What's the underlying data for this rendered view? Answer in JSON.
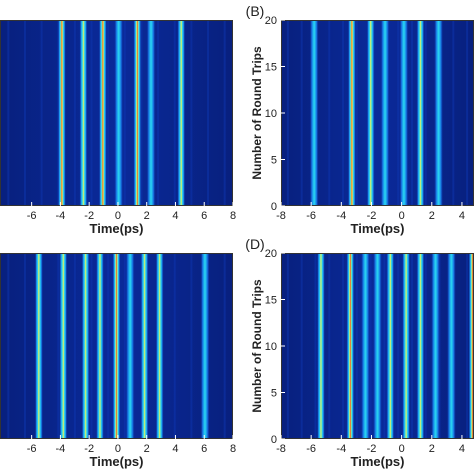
{
  "chart_data": [
    {
      "id": "A",
      "type": "heatmap",
      "panel_label": "",
      "xlabel": "Time(ps)",
      "ylabel": "",
      "xticks": [
        -6,
        -4,
        -2,
        0,
        2,
        4,
        6,
        8
      ],
      "yticks": [],
      "xlim": [
        -8.2,
        8.0
      ],
      "ylim": [
        0,
        20
      ],
      "pulses": [
        {
          "t": -3.9,
          "peak": "red"
        },
        {
          "t": -2.4,
          "peak": "yellow"
        },
        {
          "t": -1.05,
          "peak": "red"
        },
        {
          "t": 0.05,
          "peak": "cyan"
        },
        {
          "t": 1.35,
          "peak": "red"
        },
        {
          "t": 2.3,
          "peak": "cyan"
        },
        {
          "t": 4.4,
          "peak": "yellow"
        }
      ]
    },
    {
      "id": "B",
      "type": "heatmap",
      "panel_label": "(B)",
      "xlabel": "Time(ps)",
      "ylabel": "Number of Round Trips",
      "xticks": [
        -8,
        -6,
        -4,
        -2,
        0,
        2,
        4
      ],
      "yticks": [
        0,
        5,
        10,
        15,
        20
      ],
      "xlim": [
        -8,
        4.8
      ],
      "ylim": [
        0,
        20
      ],
      "pulses": [
        {
          "t": -5.8,
          "peak": "cyan"
        },
        {
          "t": -3.3,
          "peak": "red"
        },
        {
          "t": -2.05,
          "peak": "yellow"
        },
        {
          "t": -1.1,
          "peak": "cyan"
        },
        {
          "t": 0.15,
          "peak": "cyan"
        },
        {
          "t": 1.25,
          "peak": "yellow"
        },
        {
          "t": 2.45,
          "peak": "cyan"
        }
      ]
    },
    {
      "id": "C",
      "type": "heatmap",
      "panel_label": "",
      "xlabel": "Time(ps)",
      "ylabel": "",
      "xticks": [
        -6,
        -4,
        -2,
        0,
        2,
        4,
        6,
        8
      ],
      "yticks": [],
      "xlim": [
        -8.2,
        8.0
      ],
      "ylim": [
        0,
        20
      ],
      "pulses": [
        {
          "t": -5.5,
          "peak": "yellow"
        },
        {
          "t": -3.8,
          "peak": "yellow"
        },
        {
          "t": -2.25,
          "peak": "yellow"
        },
        {
          "t": -1.25,
          "peak": "yellow"
        },
        {
          "t": -0.1,
          "peak": "red"
        },
        {
          "t": 0.85,
          "peak": "cyan"
        },
        {
          "t": 1.85,
          "peak": "yellow"
        },
        {
          "t": 2.9,
          "peak": "yellow"
        },
        {
          "t": 6.05,
          "peak": "cyan"
        }
      ]
    },
    {
      "id": "D",
      "type": "heatmap",
      "panel_label": "(D)",
      "xlabel": "Time(ps)",
      "ylabel": "Number of Round Trips",
      "xticks": [
        -8,
        -6,
        -4,
        -2,
        0,
        2,
        4
      ],
      "yticks": [
        0,
        5,
        10,
        15,
        20
      ],
      "xlim": [
        -8,
        4.8
      ],
      "ylim": [
        0,
        20
      ],
      "pulses": [
        {
          "t": -5.35,
          "peak": "yellow"
        },
        {
          "t": -3.4,
          "peak": "red"
        },
        {
          "t": -2.4,
          "peak": "cyan"
        },
        {
          "t": -1.6,
          "peak": "cyan"
        },
        {
          "t": -0.75,
          "peak": "yellow"
        },
        {
          "t": 0.3,
          "peak": "yellow"
        },
        {
          "t": 1.25,
          "peak": "yellow"
        },
        {
          "t": 2.25,
          "peak": "cyan"
        },
        {
          "t": 3.3,
          "peak": "cyan"
        },
        {
          "t": 4.7,
          "peak": "red"
        }
      ]
    }
  ],
  "colors": {
    "background": "#0a2a9a",
    "background_edge": "#08207e",
    "cyan": "#2ad8f0",
    "yellow": "#e8f25a",
    "red": "#e04020"
  }
}
